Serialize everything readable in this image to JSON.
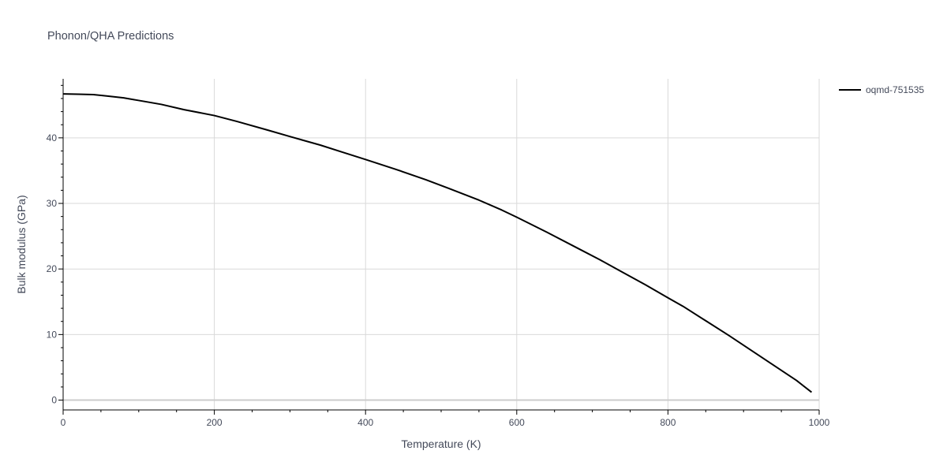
{
  "chart_data": {
    "type": "line",
    "title": "Phonon/QHA Predictions",
    "xlabel": "Temperature (K)",
    "ylabel": "Bulk modulus (GPa)",
    "xlim": [
      0,
      1000
    ],
    "ylim": [
      -1.5,
      49
    ],
    "x_ticks": [
      0,
      200,
      400,
      600,
      800,
      1000
    ],
    "y_ticks": [
      0,
      10,
      20,
      30,
      40
    ],
    "x_tick_labels": [
      "0",
      "200",
      "400",
      "600",
      "800",
      "1000"
    ],
    "y_tick_labels": [
      "0",
      "10",
      "20",
      "30",
      "40"
    ],
    "grid": true,
    "legend_position": "top-right",
    "series": [
      {
        "name": "oqmd-751535",
        "color": "#000000",
        "x": [
          0,
          20,
          40,
          60,
          80,
          100,
          130,
          160,
          200,
          230,
          270,
          300,
          340,
          370,
          400,
          440,
          480,
          510,
          550,
          580,
          600,
          640,
          680,
          710,
          740,
          770,
          800,
          820,
          850,
          880,
          910,
          940,
          970,
          990
        ],
        "y": [
          46.7,
          46.65,
          46.6,
          46.35,
          46.1,
          45.7,
          45.1,
          44.3,
          43.4,
          42.5,
          41.2,
          40.2,
          38.9,
          37.8,
          36.7,
          35.2,
          33.6,
          32.3,
          30.5,
          29.0,
          27.9,
          25.6,
          23.2,
          21.4,
          19.5,
          17.6,
          15.6,
          14.3,
          12.1,
          9.9,
          7.6,
          5.3,
          3.0,
          1.2
        ]
      }
    ]
  }
}
